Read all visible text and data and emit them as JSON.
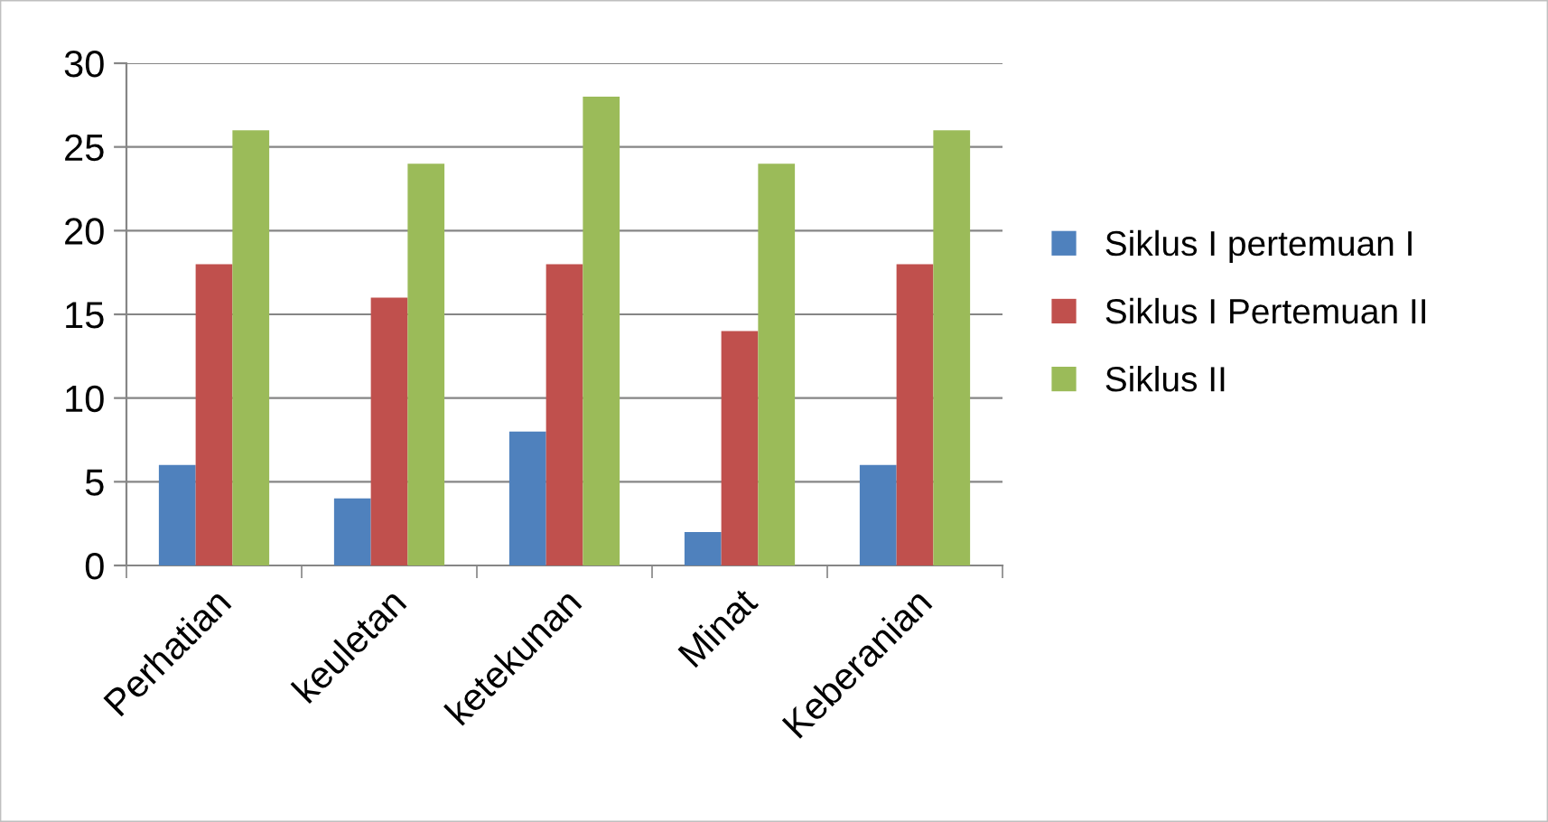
{
  "chart_data": {
    "type": "bar",
    "categories": [
      "Perhatian",
      "keuletan",
      "ketekunan",
      "Minat",
      "Keberanian"
    ],
    "series": [
      {
        "name": "Siklus I pertemuan I",
        "color": "#4f81bd",
        "values": [
          6,
          4,
          8,
          2,
          6
        ]
      },
      {
        "name": "Siklus I Pertemuan II",
        "color": "#c0504d",
        "values": [
          18,
          16,
          18,
          14,
          18
        ]
      },
      {
        "name": "Siklus II",
        "color": "#9bbb59",
        "values": [
          26,
          24,
          28,
          24,
          26
        ]
      }
    ],
    "ylim": [
      0,
      30
    ],
    "yticks": [
      0,
      5,
      10,
      15,
      20,
      25,
      30
    ],
    "grid": "y",
    "legend": "right"
  }
}
